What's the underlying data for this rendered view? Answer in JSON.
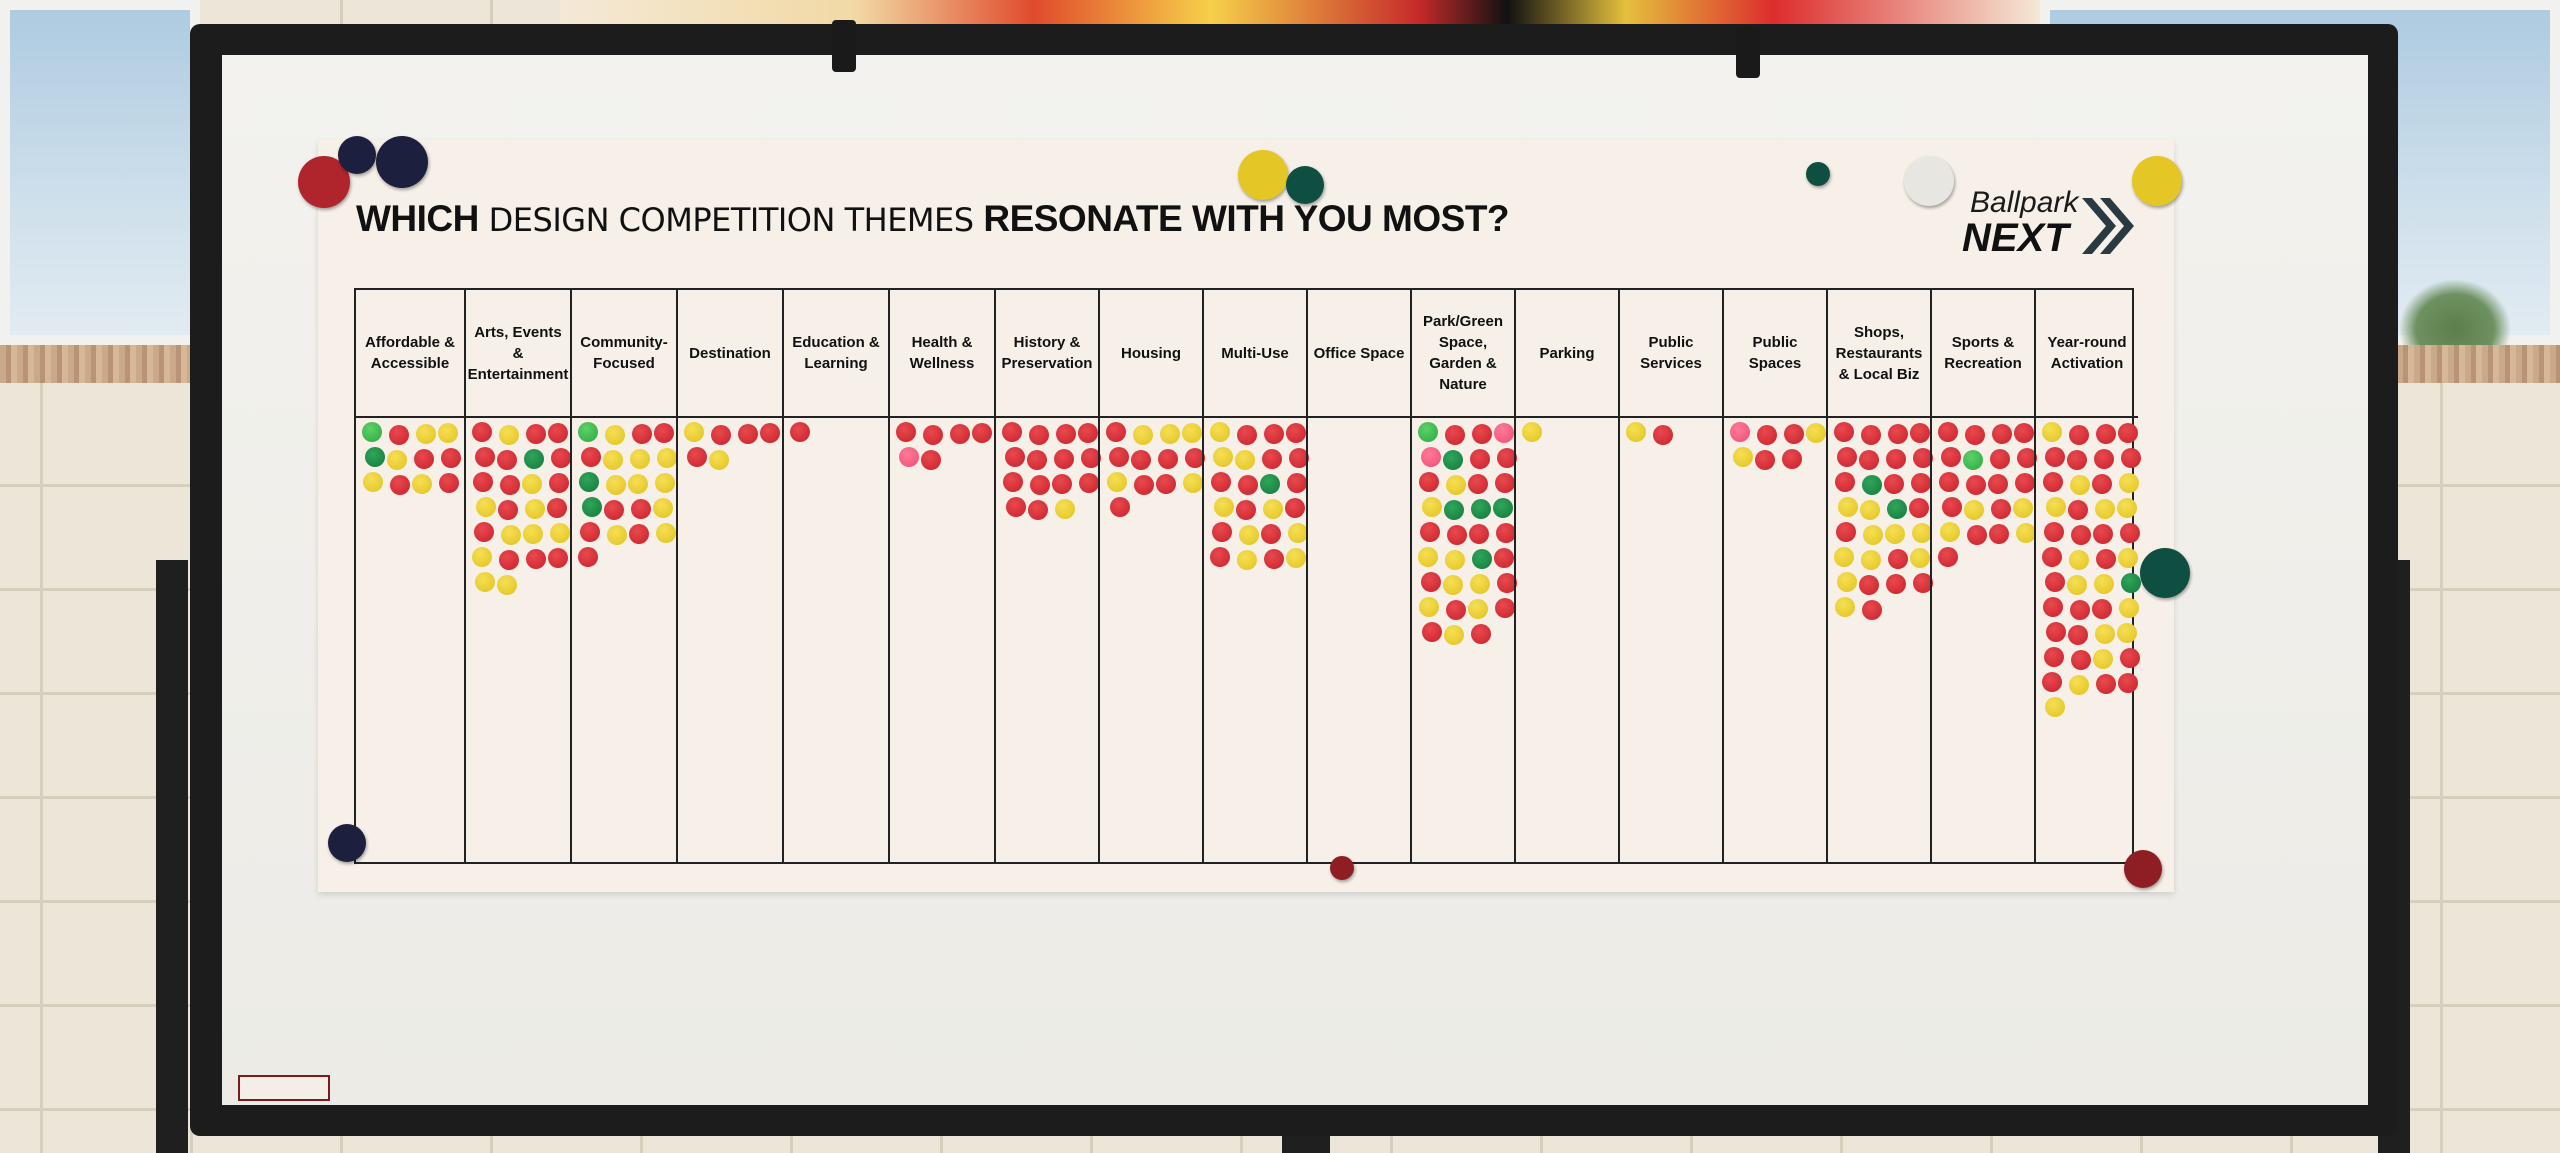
{
  "title": {
    "part1": "WHICH",
    "part2": "DESIGN COMPETITION THEMES",
    "part3": "RESONATE WITH YOU MOST?"
  },
  "logo": {
    "line1": "Ballpark",
    "line2": "NEXT"
  },
  "colors": {
    "red": "#d0242d",
    "yellow": "#ecce2a",
    "green": "#137a3c",
    "lightgreen": "#3cbc4e",
    "pink": "#f25a7e"
  },
  "categories": [
    {
      "label": "Affordable & Accessible",
      "dots": [
        "lightgreen",
        "red",
        "yellow",
        "yellow",
        "green",
        "yellow",
        "red",
        "red",
        "yellow",
        "red",
        "yellow",
        "red"
      ]
    },
    {
      "label": "Arts, Events & Entertainment",
      "dots": [
        "red",
        "yellow",
        "red",
        "red",
        "red",
        "red",
        "green",
        "red",
        "red",
        "red",
        "yellow",
        "red",
        "yellow",
        "red",
        "yellow",
        "red",
        "red",
        "yellow",
        "yellow",
        "yellow",
        "yellow",
        "red",
        "red",
        "red",
        "yellow",
        "yellow"
      ]
    },
    {
      "label": "Community-Focused",
      "dots": [
        "lightgreen",
        "yellow",
        "red",
        "red",
        "red",
        "yellow",
        "yellow",
        "yellow",
        "green",
        "yellow",
        "yellow",
        "yellow",
        "green",
        "red",
        "red",
        "yellow",
        "red",
        "yellow",
        "red",
        "yellow",
        "red"
      ]
    },
    {
      "label": "Destination",
      "dots": [
        "yellow",
        "red",
        "red",
        "red",
        "red",
        "yellow"
      ]
    },
    {
      "label": "Education & Learning",
      "dots": [
        "red"
      ]
    },
    {
      "label": "Health & Wellness",
      "dots": [
        "red",
        "red",
        "red",
        "red",
        "pink",
        "red"
      ]
    },
    {
      "label": "History & Preservation",
      "dots": [
        "red",
        "red",
        "red",
        "red",
        "red",
        "red",
        "red",
        "red",
        "red",
        "red",
        "red",
        "red",
        "red",
        "red",
        "yellow"
      ]
    },
    {
      "label": "Housing",
      "dots": [
        "red",
        "yellow",
        "yellow",
        "yellow",
        "red",
        "red",
        "red",
        "red",
        "yellow",
        "red",
        "red",
        "yellow",
        "red"
      ]
    },
    {
      "label": "Multi-Use",
      "dots": [
        "yellow",
        "red",
        "red",
        "red",
        "yellow",
        "yellow",
        "red",
        "red",
        "red",
        "red",
        "green",
        "red",
        "yellow",
        "red",
        "yellow",
        "red",
        "red",
        "yellow",
        "red",
        "yellow",
        "red",
        "yellow",
        "red",
        "yellow"
      ]
    },
    {
      "label": "Office Space",
      "dots": []
    },
    {
      "label": "Park/Green Space, Garden & Nature",
      "dots": [
        "lightgreen",
        "red",
        "red",
        "pink",
        "pink",
        "green",
        "red",
        "red",
        "red",
        "yellow",
        "red",
        "red",
        "yellow",
        "green",
        "green",
        "green",
        "red",
        "red",
        "red",
        "red",
        "yellow",
        "yellow",
        "green",
        "red",
        "red",
        "yellow",
        "yellow",
        "red",
        "yellow",
        "red",
        "yellow",
        "red",
        "red",
        "yellow",
        "red"
      ]
    },
    {
      "label": "Parking",
      "dots": [
        "yellow"
      ]
    },
    {
      "label": "Public Services",
      "dots": [
        "yellow",
        "red"
      ]
    },
    {
      "label": "Public Spaces",
      "dots": [
        "pink",
        "red",
        "red",
        "yellow",
        "yellow",
        "red",
        "red"
      ]
    },
    {
      "label": "Shops, Restaurants & Local Biz",
      "dots": [
        "red",
        "red",
        "red",
        "red",
        "red",
        "red",
        "red",
        "red",
        "red",
        "green",
        "red",
        "red",
        "yellow",
        "yellow",
        "green",
        "red",
        "red",
        "yellow",
        "yellow",
        "yellow",
        "yellow",
        "yellow",
        "red",
        "yellow",
        "yellow",
        "red",
        "red",
        "red",
        "yellow",
        "red"
      ]
    },
    {
      "label": "Sports & Recreation",
      "dots": [
        "red",
        "red",
        "red",
        "red",
        "red",
        "lightgreen",
        "red",
        "red",
        "red",
        "red",
        "red",
        "red",
        "red",
        "yellow",
        "red",
        "yellow",
        "yellow",
        "red",
        "red",
        "yellow",
        "red"
      ]
    },
    {
      "label": "Year-round Activation",
      "dots": [
        "yellow",
        "red",
        "red",
        "red",
        "red",
        "red",
        "red",
        "red",
        "red",
        "yellow",
        "red",
        "yellow",
        "yellow",
        "red",
        "yellow",
        "yellow",
        "red",
        "red",
        "red",
        "red",
        "red",
        "yellow",
        "red",
        "yellow",
        "red",
        "yellow",
        "yellow",
        "green",
        "red",
        "red",
        "red",
        "yellow",
        "red",
        "red",
        "yellow",
        "yellow",
        "red",
        "red",
        "yellow",
        "red",
        "red",
        "yellow",
        "red",
        "red",
        "yellow"
      ]
    }
  ]
}
